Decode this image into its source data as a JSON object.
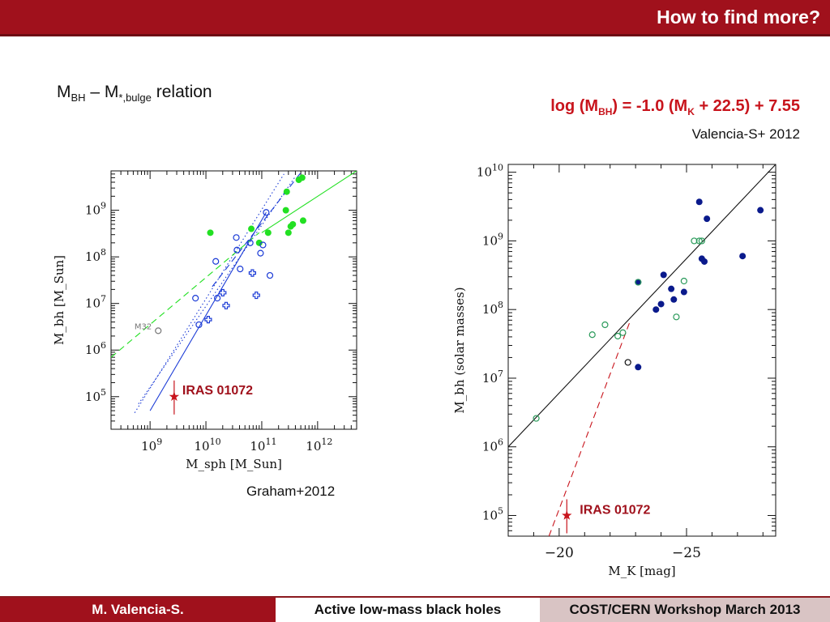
{
  "header": {
    "title": "How to find more?"
  },
  "left_label": {
    "m": "M",
    "bh": "BH",
    "dash": " – M",
    "sub": "*,bulge",
    "tail": " relation"
  },
  "equation": {
    "p1": "log (M",
    "s1": "BH",
    "p2": ") = -1.0 (M",
    "s2": "K",
    "p3": " + 22.5) + 7.55"
  },
  "citation_right": "Valencia-S+  2012",
  "citation_left": "Graham+2012",
  "footer": {
    "author": "M. Valencia-S.",
    "topic": "Active low-mass black holes",
    "event": "COST/CERN Workshop March 2013"
  },
  "colors": {
    "brand": "#a0111c",
    "red": "#c8141c",
    "green": "#22e022",
    "blue": "#1a3ad6",
    "navy": "#0a1a8c",
    "open_green": "#2a9a5a"
  },
  "chart_data": [
    {
      "type": "scatter",
      "xlabel": "M_sph [M_Sun]",
      "ylabel": "M_bh [M_Sun]",
      "xscale": "log",
      "yscale": "log",
      "xlim": [
        200000000.0,
        5000000000000.0
      ],
      "ylim": [
        20000.0,
        7000000000.0
      ],
      "x_ticks": [
        1000000000.0,
        10000000000.0,
        100000000000.0,
        1000000000000.0
      ],
      "x_tick_labels": [
        "10^9",
        "10^10",
        "10^11",
        "10^12"
      ],
      "y_ticks": [
        100000.0,
        1000000.0,
        10000000.0,
        100000000.0,
        1000000000.0
      ],
      "y_tick_labels": [
        "10^5",
        "10^6",
        "10^7",
        "10^8",
        "10^9"
      ],
      "annotations": [
        "M32",
        "IRAS 01072"
      ],
      "series": [
        {
          "marker": "filled-circle",
          "color": "green",
          "points": [
            [
              12000000000.0,
              330000000.0
            ],
            [
              65000000000.0,
              400000000.0
            ],
            [
              130000000000.0,
              330000000.0
            ],
            [
              90000000000.0,
              200000000.0
            ],
            [
              270000000000.0,
              1000000000.0
            ],
            [
              280000000000.0,
              2500000000.0
            ],
            [
              300000000000.0,
              330000000.0
            ],
            [
              330000000000.0,
              450000000.0
            ],
            [
              360000000000.0,
              500000000.0
            ],
            [
              460000000000.0,
              4500000000.0
            ],
            [
              530000000000.0,
              5000000000.0
            ],
            [
              550000000000.0,
              600000000.0
            ]
          ]
        },
        {
          "marker": "open-circle",
          "color": "blue",
          "points": [
            [
              6500000000.0,
              13000000.0
            ],
            [
              7500000000.0,
              3500000.0
            ],
            [
              15000000000.0,
              80000000.0
            ],
            [
              16000000000.0,
              13000000.0
            ],
            [
              35000000000.0,
              260000000.0
            ],
            [
              36000000000.0,
              140000000.0
            ],
            [
              41000000000.0,
              55000000.0
            ],
            [
              62000000000.0,
              200000000.0
            ],
            [
              95000000000.0,
              120000000.0
            ],
            [
              105000000000.0,
              180000000.0
            ],
            [
              120000000000.0,
              900000000.0
            ],
            [
              140000000000.0,
              40000000.0
            ]
          ]
        },
        {
          "marker": "open-cross",
          "color": "blue",
          "points": [
            [
              11000000000.0,
              4500000.0
            ],
            [
              20000000000.0,
              17000000.0
            ],
            [
              23000000000.0,
              9000000.0
            ],
            [
              68000000000.0,
              45000000.0
            ],
            [
              80000000000.0,
              15000000.0
            ]
          ]
        },
        {
          "marker": "open-circle",
          "color": "gray",
          "points": [
            [
              1400000000.0,
              2600000.0
            ]
          ]
        },
        {
          "marker": "star",
          "color": "red",
          "points": [
            [
              2700000000.0,
              100000.0
            ]
          ]
        }
      ],
      "lines": [
        {
          "style": "solid",
          "color": "blue",
          "from": [
            1000000000.0,
            50000.0
          ],
          "to": [
            120000000000.0,
            900000000.0
          ]
        },
        {
          "style": "dashed",
          "color": "blue",
          "from": [
            13000000000.0,
            23000000.0
          ],
          "to": [
            510000000000.0,
            6600000000.0
          ]
        },
        {
          "style": "dotted",
          "color": "blue",
          "from": [
            620000000.0,
            70000.0
          ],
          "to": [
            400000000000.0,
            5300000000.0
          ]
        },
        {
          "style": "dotted",
          "color": "blue",
          "from": [
            530000000.0,
            45000.0
          ],
          "to": [
            250000000000.0,
            6000000000.0
          ]
        },
        {
          "style": "dashed",
          "color": "green",
          "from": [
            200000000.0,
            700000.0
          ],
          "to": [
            90000000000.0,
            330000000.0
          ]
        },
        {
          "style": "solid",
          "color": "green",
          "from": [
            100000000000.0,
            330000000.0
          ],
          "to": [
            5000000000000.0,
            7000000000.0
          ]
        }
      ]
    },
    {
      "type": "scatter",
      "xlabel": "M_K [mag]",
      "ylabel": "M_bh (solar masses)",
      "yscale": "log",
      "xlim": [
        -18,
        -28.5
      ],
      "ylim": [
        50000.0,
        13000000000.0
      ],
      "x_ticks": [
        -20,
        -25
      ],
      "x_tick_labels": [
        "−20",
        "−25"
      ],
      "y_ticks": [
        100000.0,
        1000000.0,
        10000000.0,
        100000000.0,
        1000000000.0,
        10000000000.0
      ],
      "y_tick_labels": [
        "10^5",
        "10^6",
        "10^7",
        "10^8",
        "10^9",
        "10^10"
      ],
      "annotations": [
        "IRAS 01072"
      ],
      "series": [
        {
          "marker": "filled-circle",
          "color": "navy",
          "points": [
            [
              -23.1,
              250000000.0
            ],
            [
              -23.8,
              100000000.0
            ],
            [
              -24.0,
              120000000.0
            ],
            [
              -24.1,
              320000000.0
            ],
            [
              -24.4,
              200000000.0
            ],
            [
              -24.5,
              140000000.0
            ],
            [
              -24.9,
              180000000.0
            ],
            [
              -25.5,
              3700000000.0
            ],
            [
              -25.6,
              550000000.0
            ],
            [
              -25.7,
              500000000.0
            ],
            [
              -25.8,
              2100000000.0
            ],
            [
              -27.2,
              600000000.0
            ],
            [
              -27.9,
              2800000000.0
            ],
            [
              -23.1,
              14500000.0
            ]
          ]
        },
        {
          "marker": "open-circle",
          "color": "green",
          "points": [
            [
              -19.1,
              2600000.0
            ],
            [
              -21.3,
              43000000.0
            ],
            [
              -21.8,
              60000000.0
            ],
            [
              -22.3,
              41000000.0
            ],
            [
              -22.5,
              46000000.0
            ],
            [
              -24.6,
              78000000.0
            ],
            [
              -24.9,
              260000000.0
            ],
            [
              -25.3,
              1000000000.0
            ],
            [
              -25.5,
              1000000000.0
            ],
            [
              -25.6,
              1000000000.0
            ],
            [
              -23.1,
              250000000.0
            ]
          ]
        },
        {
          "marker": "open-circle",
          "color": "black",
          "points": [
            [
              -22.7,
              17000000.0
            ]
          ]
        },
        {
          "marker": "star",
          "color": "red",
          "points": [
            [
              -20.3,
              100000.0
            ]
          ]
        }
      ],
      "lines": [
        {
          "style": "solid",
          "color": "black",
          "from": [
            -18,
            1000000.0
          ],
          "to": [
            -28.5,
            13000000000.0
          ]
        },
        {
          "style": "dashed",
          "color": "red",
          "from": [
            -19.6,
            50000.0
          ],
          "to": [
            -22.8,
            70000000.0
          ]
        }
      ]
    }
  ]
}
